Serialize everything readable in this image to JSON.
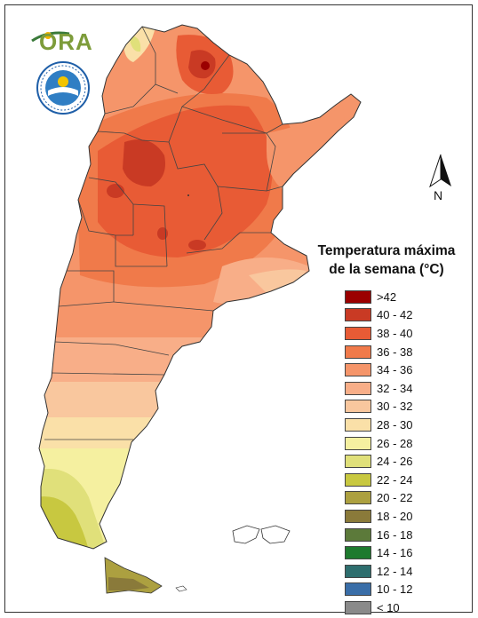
{
  "legend": {
    "title_line1": "Temperatura máxima",
    "title_line2": "de la semana (°C)",
    "items": [
      {
        "label": ">42",
        "color": "#9b0000"
      },
      {
        "label": "40 - 42",
        "color": "#c93a24"
      },
      {
        "label": "38 - 40",
        "color": "#e85b35"
      },
      {
        "label": "36 - 38",
        "color": "#f07a4a"
      },
      {
        "label": "34 - 36",
        "color": "#f5956a"
      },
      {
        "label": "32 - 34",
        "color": "#f8ae88"
      },
      {
        "label": "30 - 32",
        "color": "#f9c79e"
      },
      {
        "label": "28 - 30",
        "color": "#fae0a8"
      },
      {
        "label": "26 - 28",
        "color": "#f5f0a0"
      },
      {
        "label": "24 - 26",
        "color": "#e0e07a"
      },
      {
        "label": "22 - 24",
        "color": "#c8c840"
      },
      {
        "label": "20 - 22",
        "color": "#aca040"
      },
      {
        "label": "18 - 20",
        "color": "#8a7a3a"
      },
      {
        "label": "16 - 18",
        "color": "#5c7a3a"
      },
      {
        "label": "14 - 16",
        "color": "#1e7a2e"
      },
      {
        "label": "12 - 14",
        "color": "#2e6e6e"
      },
      {
        "label": "10 - 12",
        "color": "#3a6ea8"
      },
      {
        "label": "< 10",
        "color": "#8a8a8a"
      }
    ]
  },
  "north_arrow": {
    "label": "N",
    "icon": "north-arrow-icon"
  },
  "logos": {
    "ora_text": "ORA",
    "smn_icon": "smn-seal-icon"
  }
}
